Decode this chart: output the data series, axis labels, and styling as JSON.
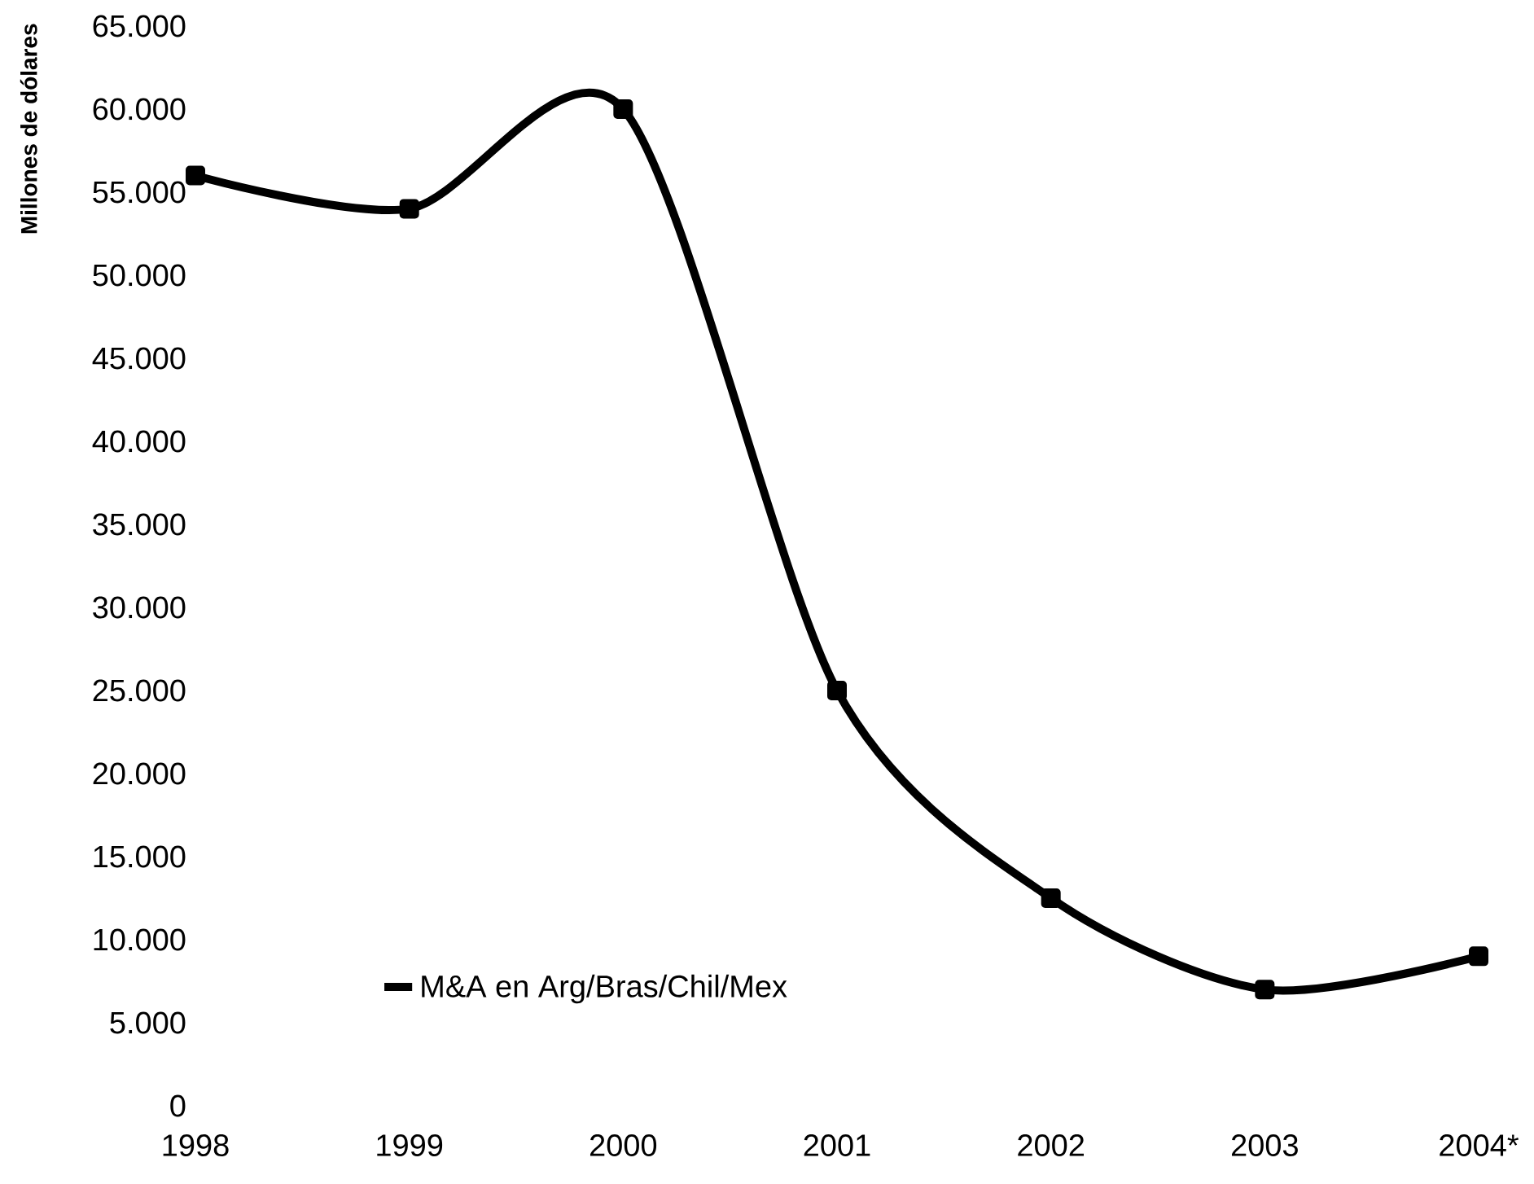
{
  "chart_data": {
    "type": "line",
    "ylabel": "Millones de dólares",
    "categories": [
      "1998",
      "1999",
      "2000",
      "2001",
      "2002",
      "2003",
      "2004*"
    ],
    "series": [
      {
        "name": "M&A en Arg/Bras/Chil/Mex",
        "color": "#000000",
        "values": [
          56000,
          54000,
          60000,
          25000,
          12500,
          7000,
          9000
        ]
      }
    ],
    "ylim": [
      0,
      65000
    ],
    "yticks": [
      {
        "value": 0,
        "label": "0"
      },
      {
        "value": 5000,
        "label": "5.000"
      },
      {
        "value": 10000,
        "label": "10.000"
      },
      {
        "value": 15000,
        "label": "15.000"
      },
      {
        "value": 20000,
        "label": "20.000"
      },
      {
        "value": 25000,
        "label": "25.000"
      },
      {
        "value": 30000,
        "label": "30.000"
      },
      {
        "value": 35000,
        "label": "35.000"
      },
      {
        "value": 40000,
        "label": "40.000"
      },
      {
        "value": 45000,
        "label": "45.000"
      },
      {
        "value": 50000,
        "label": "50.000"
      },
      {
        "value": 55000,
        "label": "55.000"
      },
      {
        "value": 60000,
        "label": "60.000"
      },
      {
        "value": 65000,
        "label": "65.000"
      }
    ],
    "legend": "bottom",
    "marker": "square",
    "line_style": "solid",
    "grid": false
  }
}
